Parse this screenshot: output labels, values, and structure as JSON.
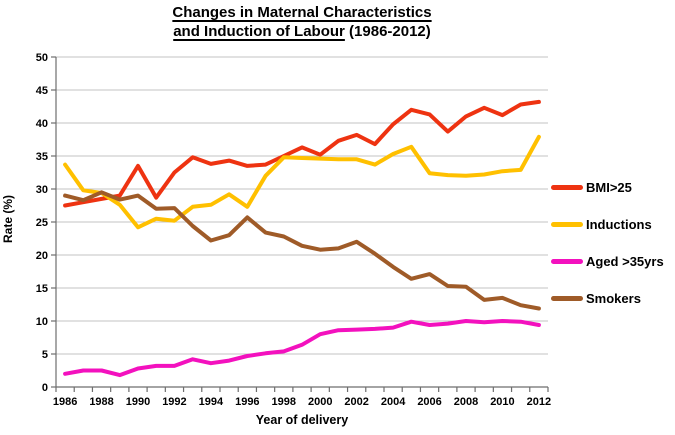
{
  "title": {
    "line1": "Changes in Maternal Characteristics",
    "line2_underlined": "and Induction of Labour",
    "line2_suffix": " (1986-2012)"
  },
  "chart_data": {
    "type": "line",
    "x": [
      1986,
      1987,
      1988,
      1989,
      1990,
      1991,
      1992,
      1993,
      1994,
      1995,
      1996,
      1997,
      1998,
      1999,
      2000,
      2001,
      2002,
      2003,
      2004,
      2005,
      2006,
      2007,
      2008,
      2009,
      2010,
      2011,
      2012
    ],
    "series": [
      {
        "name": "BMI>25",
        "color": "#EE3311",
        "values": [
          27.5,
          28,
          28.5,
          29,
          33.5,
          28.7,
          32.5,
          34.8,
          33.8,
          34.3,
          33.5,
          33.7,
          35,
          36.3,
          35.2,
          37.3,
          38.2,
          36.8,
          39.8,
          42,
          41.3,
          38.7,
          41,
          42.3,
          41.2,
          42.8,
          43.2
        ]
      },
      {
        "name": "Inductions",
        "color": "#FFC000",
        "values": [
          33.7,
          29.8,
          29.4,
          27.6,
          24.2,
          25.5,
          25.2,
          27.3,
          27.6,
          29.2,
          27.3,
          32,
          34.8,
          34.7,
          34.6,
          34.5,
          34.5,
          33.7,
          35.3,
          36.4,
          32.4,
          32.1,
          32,
          32.2,
          32.7,
          32.9,
          37.9
        ]
      },
      {
        "name": "Aged >35yrs",
        "color": "#F311BE",
        "values": [
          2,
          2.5,
          2.5,
          1.8,
          2.8,
          3.2,
          3.2,
          4.2,
          3.6,
          4,
          4.7,
          5.1,
          5.4,
          6.4,
          8,
          8.6,
          8.7,
          8.8,
          9,
          9.9,
          9.4,
          9.6,
          10,
          9.8,
          10,
          9.9,
          9.4
        ]
      },
      {
        "name": "Smokers",
        "color": "#9F5B28",
        "values": [
          29,
          28.3,
          29.5,
          28.4,
          29,
          27,
          27.1,
          24.4,
          22.2,
          23,
          25.7,
          23.4,
          22.8,
          21.4,
          20.8,
          21,
          22,
          20.2,
          18.2,
          16.4,
          17.1,
          15.3,
          15.2,
          13.2,
          13.5,
          12.4,
          11.9
        ]
      }
    ],
    "xlabel": "Year of delivery",
    "ylabel": "Rate (%)",
    "ylim": [
      0,
      50
    ],
    "ytick_step": 5,
    "xtick_labels": [
      "1986",
      "1988",
      "1990",
      "1992",
      "1994",
      "1996",
      "1998",
      "2000",
      "2002",
      "2004",
      "2006",
      "2008",
      "2010",
      "2012"
    ],
    "grid": "horizontal gridlines every 5",
    "legend_position": "right"
  },
  "colors": {
    "background": "#FFFFFF",
    "gridline": "#C3C3C3",
    "axis": "#6E6E6E",
    "text": "#000000"
  }
}
